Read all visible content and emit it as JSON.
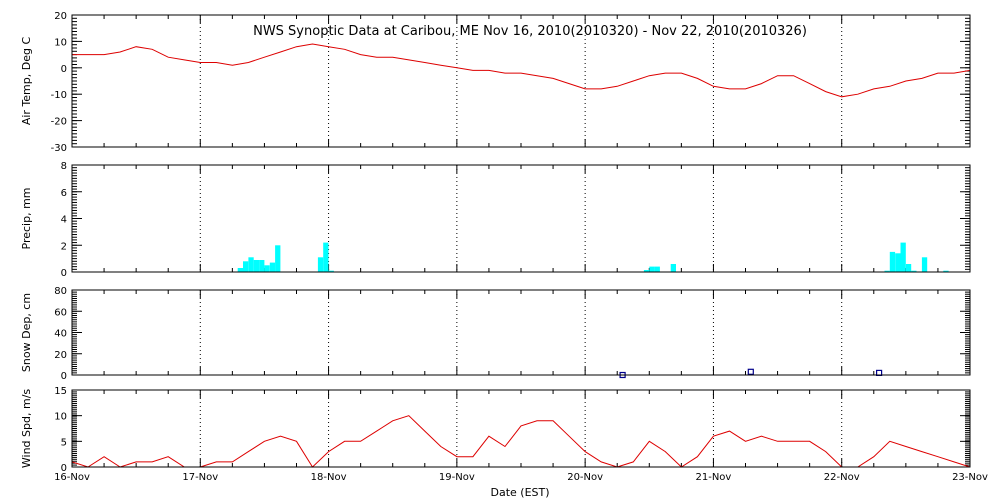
{
  "chart_data": {
    "title": "NWS Synoptic Data at Caribou, ME   Nov 16, 2010(2010320) - Nov 22, 2010(2010326)",
    "xlabel": "Date (EST)",
    "x_start": "2010-11-16T00:00",
    "x_end": "2010-11-23T00:00",
    "x_tick_labels": [
      "16-Nov",
      "17-Nov",
      "18-Nov",
      "19-Nov",
      "20-Nov",
      "21-Nov",
      "22-Nov",
      "23-Nov"
    ],
    "grid": "vertical dotted at each day",
    "colors": {
      "temp": "#dd0000",
      "wind": "#dd0000",
      "precip": "#00ffff",
      "snow": "#00008b"
    },
    "panels": [
      {
        "id": "temp",
        "type": "line",
        "ylabel": "Air Temp, Deg C",
        "ylim": [
          -30,
          20
        ],
        "yticks": [
          20,
          10,
          0,
          -10,
          -20,
          -30
        ],
        "series": [
          {
            "x": [
              "2010-11-16T00:00",
              "2010-11-16T03:00",
              "2010-11-16T06:00",
              "2010-11-16T09:00",
              "2010-11-16T12:00",
              "2010-11-16T15:00",
              "2010-11-16T18:00",
              "2010-11-16T21:00",
              "2010-11-17T00:00",
              "2010-11-17T03:00",
              "2010-11-17T06:00",
              "2010-11-17T09:00",
              "2010-11-17T12:00",
              "2010-11-17T15:00",
              "2010-11-17T18:00",
              "2010-11-17T21:00",
              "2010-11-18T00:00",
              "2010-11-18T03:00",
              "2010-11-18T06:00",
              "2010-11-18T09:00",
              "2010-11-18T12:00",
              "2010-11-18T15:00",
              "2010-11-18T18:00",
              "2010-11-18T21:00",
              "2010-11-19T00:00",
              "2010-11-19T03:00",
              "2010-11-19T06:00",
              "2010-11-19T09:00",
              "2010-11-19T12:00",
              "2010-11-19T15:00",
              "2010-11-19T18:00",
              "2010-11-19T21:00",
              "2010-11-20T00:00",
              "2010-11-20T03:00",
              "2010-11-20T06:00",
              "2010-11-20T09:00",
              "2010-11-20T12:00",
              "2010-11-20T15:00",
              "2010-11-20T18:00",
              "2010-11-20T21:00",
              "2010-11-21T00:00",
              "2010-11-21T03:00",
              "2010-11-21T06:00",
              "2010-11-21T09:00",
              "2010-11-21T12:00",
              "2010-11-21T15:00",
              "2010-11-21T18:00",
              "2010-11-21T21:00",
              "2010-11-22T00:00",
              "2010-11-22T03:00",
              "2010-11-22T06:00",
              "2010-11-22T09:00",
              "2010-11-22T12:00",
              "2010-11-22T15:00",
              "2010-11-22T18:00",
              "2010-11-22T21:00",
              "2010-11-23T00:00"
            ],
            "values": [
              5,
              5,
              5,
              6,
              8,
              7,
              4,
              3,
              2,
              2,
              1,
              2,
              4,
              6,
              8,
              9,
              8,
              7,
              5,
              4,
              4,
              3,
              2,
              1,
              0,
              -1,
              -1,
              -2,
              -2,
              -3,
              -4,
              -6,
              -8,
              -8,
              -7,
              -5,
              -3,
              -2,
              -2,
              -4,
              -7,
              -8,
              -8,
              -6,
              -3,
              -3,
              -6,
              -9,
              -11,
              -10,
              -8,
              -7,
              -5,
              -4,
              -2,
              -2,
              -1
            ]
          }
        ]
      },
      {
        "id": "precip",
        "type": "bar",
        "ylabel": "Precip, mm",
        "ylim": [
          0,
          8
        ],
        "yticks": [
          0,
          2,
          4,
          6,
          8
        ],
        "series": [
          {
            "x": [
              "2010-11-17T07:30",
              "2010-11-17T08:30",
              "2010-11-17T09:30",
              "2010-11-17T10:30",
              "2010-11-17T11:30",
              "2010-11-17T12:30",
              "2010-11-17T13:30",
              "2010-11-17T14:30",
              "2010-11-17T22:30",
              "2010-11-17T23:30",
              "2010-11-18T00:30",
              "2010-11-20T11:30",
              "2010-11-20T12:30",
              "2010-11-20T13:30",
              "2010-11-20T16:30",
              "2010-11-22T08:30",
              "2010-11-22T09:30",
              "2010-11-22T10:30",
              "2010-11-22T11:30",
              "2010-11-22T12:30",
              "2010-11-22T13:30",
              "2010-11-22T15:30",
              "2010-11-22T19:30"
            ],
            "values": [
              0.3,
              0.8,
              1.1,
              0.9,
              0.9,
              0.5,
              0.7,
              2.0,
              1.1,
              2.2,
              0.1,
              0.15,
              0.4,
              0.4,
              0.6,
              0.1,
              1.5,
              1.4,
              2.2,
              0.6,
              0.1,
              1.1,
              0.1
            ]
          }
        ]
      },
      {
        "id": "snow",
        "type": "scatter",
        "ylabel": "Snow Dep, cm",
        "ylim": [
          0,
          80
        ],
        "yticks": [
          0,
          20,
          40,
          60,
          80
        ],
        "series": [
          {
            "x": [
              "2010-11-20T07:00",
              "2010-11-21T07:00",
              "2010-11-22T07:00"
            ],
            "values": [
              0,
              3,
              2
            ]
          }
        ]
      },
      {
        "id": "wind",
        "type": "line",
        "ylabel": "Wind Spd, m/s",
        "ylim": [
          0,
          15
        ],
        "yticks": [
          0,
          5,
          10,
          15
        ],
        "series": [
          {
            "x": [
              "2010-11-16T00:00",
              "2010-11-16T03:00",
              "2010-11-16T06:00",
              "2010-11-16T09:00",
              "2010-11-16T12:00",
              "2010-11-16T15:00",
              "2010-11-16T18:00",
              "2010-11-16T21:00",
              "2010-11-17T00:00",
              "2010-11-17T03:00",
              "2010-11-17T06:00",
              "2010-11-17T09:00",
              "2010-11-17T12:00",
              "2010-11-17T15:00",
              "2010-11-17T18:00",
              "2010-11-17T21:00",
              "2010-11-18T00:00",
              "2010-11-18T03:00",
              "2010-11-18T06:00",
              "2010-11-18T09:00",
              "2010-11-18T12:00",
              "2010-11-18T15:00",
              "2010-11-18T18:00",
              "2010-11-18T21:00",
              "2010-11-19T00:00",
              "2010-11-19T03:00",
              "2010-11-19T06:00",
              "2010-11-19T09:00",
              "2010-11-19T12:00",
              "2010-11-19T15:00",
              "2010-11-19T18:00",
              "2010-11-19T21:00",
              "2010-11-20T00:00",
              "2010-11-20T03:00",
              "2010-11-20T06:00",
              "2010-11-20T09:00",
              "2010-11-20T12:00",
              "2010-11-20T15:00",
              "2010-11-20T18:00",
              "2010-11-20T21:00",
              "2010-11-21T00:00",
              "2010-11-21T03:00",
              "2010-11-21T06:00",
              "2010-11-21T09:00",
              "2010-11-21T12:00",
              "2010-11-21T15:00",
              "2010-11-21T18:00",
              "2010-11-21T21:00",
              "2010-11-22T00:00",
              "2010-11-22T03:00",
              "2010-11-22T06:00",
              "2010-11-22T09:00",
              "2010-11-22T12:00",
              "2010-11-22T15:00",
              "2010-11-22T18:00",
              "2010-11-22T21:00",
              "2010-11-23T00:00"
            ],
            "values": [
              1,
              0,
              2,
              0,
              1,
              1,
              2,
              0,
              0,
              1,
              1,
              3,
              5,
              6,
              5,
              0,
              3,
              5,
              5,
              7,
              9,
              10,
              7,
              4,
              2,
              2,
              6,
              4,
              8,
              9,
              9,
              6,
              3,
              1,
              0,
              1,
              5,
              3,
              0,
              2,
              6,
              7,
              5,
              6,
              5,
              5,
              5,
              3,
              0,
              0,
              2,
              5,
              4,
              3,
              2,
              1,
              0
            ]
          }
        ]
      }
    ]
  }
}
